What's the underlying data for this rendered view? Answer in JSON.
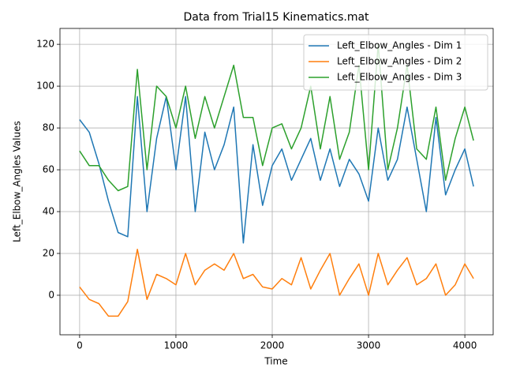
{
  "chart_data": {
    "type": "line",
    "title": "Data from Trial15 Kinematics.mat",
    "x_label": "Time",
    "y_label": "Left_Elbow_Angles Values",
    "x": [
      0,
      100,
      200,
      300,
      400,
      500,
      600,
      700,
      800,
      900,
      1000,
      1100,
      1200,
      1300,
      1400,
      1500,
      1600,
      1700,
      1800,
      1900,
      2000,
      2100,
      2200,
      2300,
      2400,
      2500,
      2600,
      2700,
      2800,
      2900,
      3000,
      3100,
      3200,
      3300,
      3400,
      3500,
      3600,
      3700,
      3800,
      3900,
      4000,
      4090
    ],
    "series": [
      {
        "name": "Left_Elbow_Angles - Dim 1",
        "color": "#1f77b4",
        "values": [
          84,
          78,
          63,
          45,
          30,
          28,
          95,
          40,
          75,
          95,
          60,
          95,
          40,
          78,
          60,
          72,
          90,
          25,
          72,
          43,
          62,
          70,
          55,
          65,
          75,
          55,
          70,
          52,
          65,
          58,
          45,
          80,
          55,
          65,
          90,
          65,
          40,
          85,
          48,
          60,
          70,
          52
        ]
      },
      {
        "name": "Left_Elbow_Angles - Dim 2",
        "color": "#ff7f0e",
        "values": [
          4,
          -2,
          -4,
          -10,
          -10,
          -3,
          22,
          -2,
          10,
          8,
          5,
          20,
          5,
          12,
          15,
          12,
          20,
          8,
          10,
          4,
          3,
          8,
          5,
          18,
          3,
          12,
          20,
          0,
          8,
          15,
          0,
          20,
          5,
          12,
          18,
          5,
          8,
          15,
          0,
          5,
          15,
          8
        ]
      },
      {
        "name": "Left_Elbow_Angles - Dim 3",
        "color": "#2ca02c",
        "values": [
          69,
          62,
          62,
          55,
          50,
          52,
          108,
          60,
          100,
          95,
          80,
          100,
          75,
          95,
          80,
          95,
          110,
          85,
          85,
          62,
          80,
          82,
          70,
          80,
          100,
          70,
          95,
          65,
          78,
          110,
          60,
          120,
          60,
          80,
          110,
          70,
          65,
          90,
          55,
          75,
          90,
          74
        ]
      }
    ],
    "xlim": [
      -204,
      4294
    ],
    "ylim": [
      -18.9,
      127.6
    ],
    "xticks": [
      0,
      1000,
      2000,
      3000,
      4000
    ],
    "yticks": [
      0,
      20,
      40,
      60,
      80,
      100,
      120
    ],
    "grid": true,
    "legend": "upper-right"
  }
}
